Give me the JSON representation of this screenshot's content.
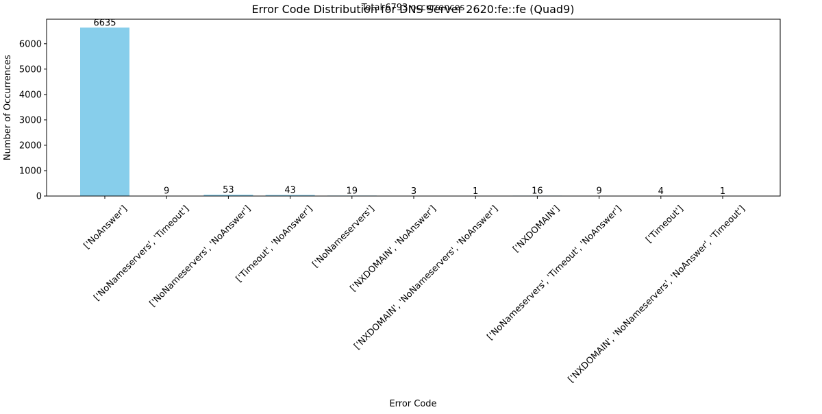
{
  "chart_data": {
    "type": "bar",
    "title": "Error Code Distribution for DNS Server 2620:fe::fe (Quad9)",
    "subtitle": "Total 6793 occurrences",
    "xlabel": "Error Code",
    "ylabel": "Number of Occurrences",
    "categories": [
      "['NoAnswer']",
      "['NoNameservers', 'Timeout']",
      "['NoNameservers', 'NoAnswer']",
      "['Timeout', 'NoAnswer']",
      "['NoNameservers']",
      "['NXDOMAIN', 'NoAnswer']",
      "['NXDOMAIN', 'NoNameservers', 'NoAnswer']",
      "['NXDOMAIN']",
      "['NoNameservers', 'Timeout', 'NoAnswer']",
      "['Timeout']",
      "['NXDOMAIN', 'NoNameservers', 'NoAnswer', 'Timeout']"
    ],
    "values": [
      6635,
      9,
      53,
      43,
      19,
      3,
      1,
      16,
      9,
      4,
      1
    ],
    "ylim": [
      0,
      6966.75
    ],
    "yticks": [
      0,
      1000,
      2000,
      3000,
      4000,
      5000,
      6000
    ],
    "bar_color": "#87ceeb",
    "grid": false,
    "legend": "none"
  }
}
